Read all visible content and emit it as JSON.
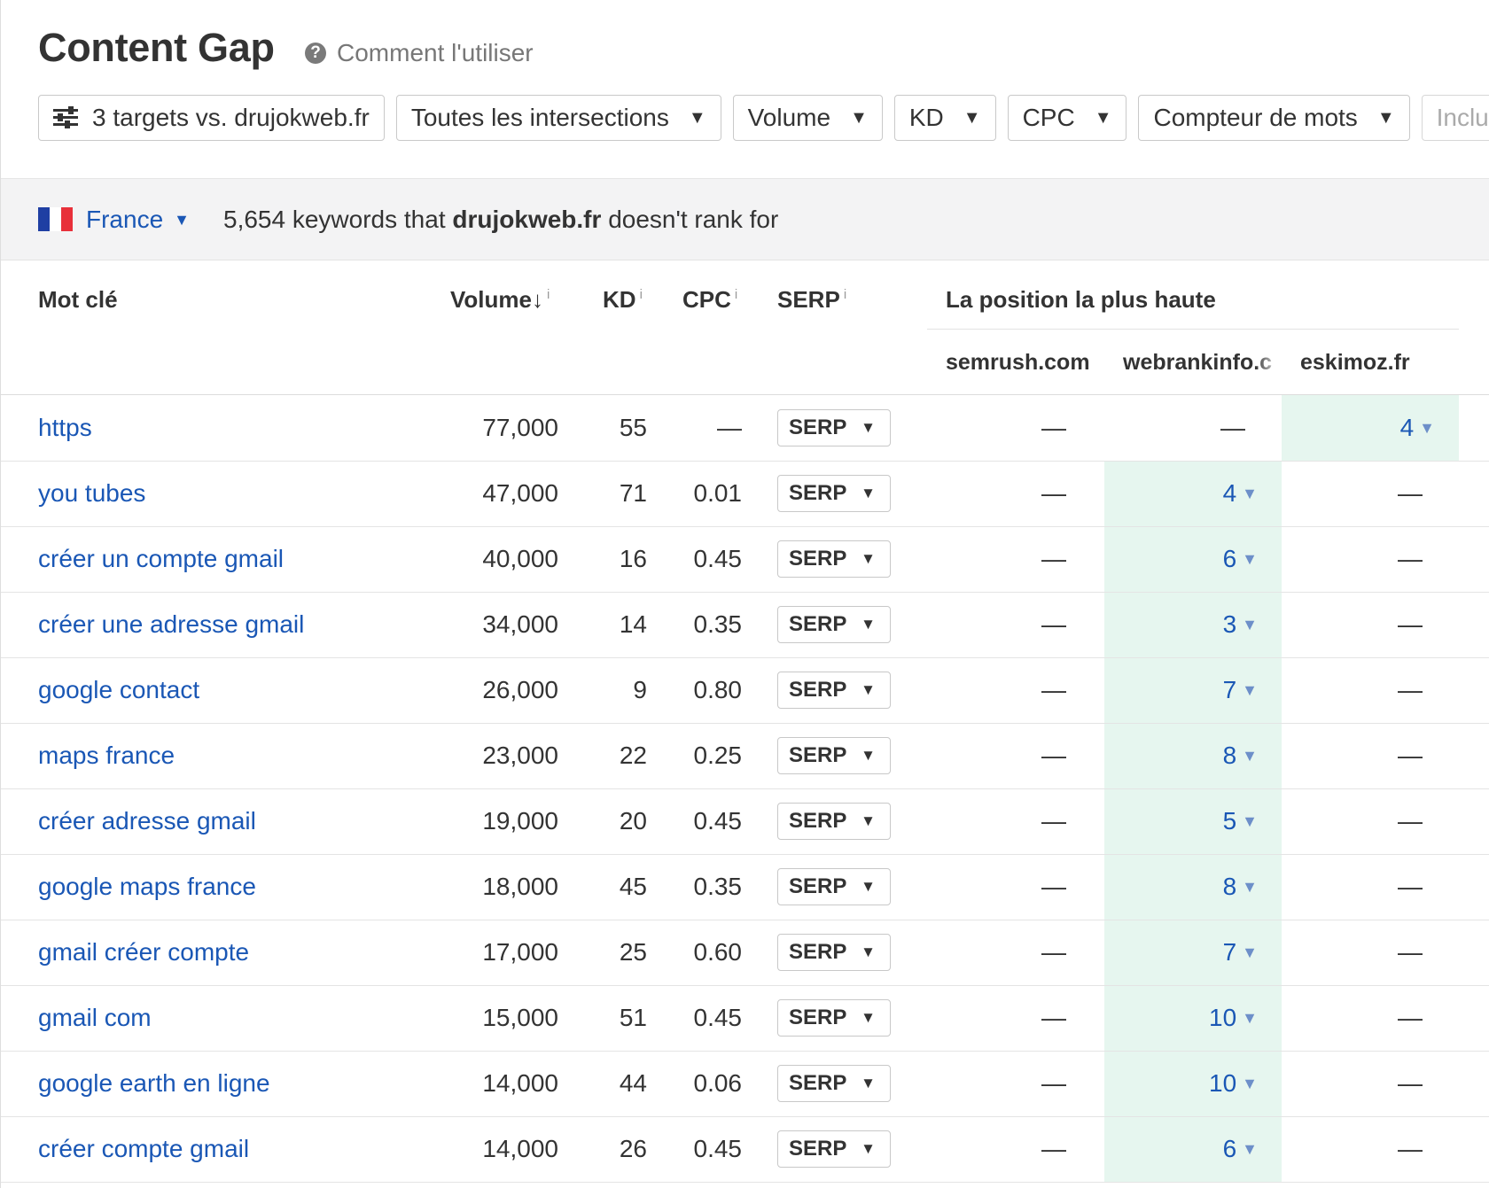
{
  "header": {
    "title": "Content Gap",
    "help_label": "Comment l'utiliser"
  },
  "filters": {
    "targets_label": "3 targets vs. drujokweb.fr",
    "intersections_label": "Toutes les intersections",
    "volume_label": "Volume",
    "kd_label": "KD",
    "cpc_label": "CPC",
    "word_count_label": "Compteur de mots",
    "include_label": "Inclure"
  },
  "country_bar": {
    "country": "France",
    "flag_colors": [
      "#1f3fa3",
      "#ffffff",
      "#e8303a"
    ],
    "summary_count": "5,654",
    "summary_pre": "keywords that",
    "summary_domain": "drujokweb.fr",
    "summary_post": "doesn't rank for"
  },
  "table": {
    "col_keyword": "Mot clé",
    "col_volume": "Volume",
    "col_kd": "KD",
    "col_cpc": "CPC",
    "col_serp": "SERP",
    "info_mark": "i",
    "sort_arrow": "↓",
    "col_group": "La position la plus haute",
    "competitors": [
      "semrush.com",
      "webrankinfo.c",
      "eskimoz.fr"
    ],
    "serp_button_label": "SERP",
    "highlight_color": "#e6f6ef",
    "rows": [
      {
        "keyword": "https",
        "volume": "77,000",
        "kd": "55",
        "cpc": "—",
        "pos1": "—",
        "pos2": "—",
        "pos3": "4"
      },
      {
        "keyword": "you tubes",
        "volume": "47,000",
        "kd": "71",
        "cpc": "0.01",
        "pos1": "—",
        "pos2": "4",
        "pos3": "—"
      },
      {
        "keyword": "créer un compte gmail",
        "volume": "40,000",
        "kd": "16",
        "cpc": "0.45",
        "pos1": "—",
        "pos2": "6",
        "pos3": "—"
      },
      {
        "keyword": "créer une adresse gmail",
        "volume": "34,000",
        "kd": "14",
        "cpc": "0.35",
        "pos1": "—",
        "pos2": "3",
        "pos3": "—"
      },
      {
        "keyword": "google contact",
        "volume": "26,000",
        "kd": "9",
        "cpc": "0.80",
        "pos1": "—",
        "pos2": "7",
        "pos3": "—"
      },
      {
        "keyword": "maps france",
        "volume": "23,000",
        "kd": "22",
        "cpc": "0.25",
        "pos1": "—",
        "pos2": "8",
        "pos3": "—"
      },
      {
        "keyword": "créer adresse gmail",
        "volume": "19,000",
        "kd": "20",
        "cpc": "0.45",
        "pos1": "—",
        "pos2": "5",
        "pos3": "—"
      },
      {
        "keyword": "google maps france",
        "volume": "18,000",
        "kd": "45",
        "cpc": "0.35",
        "pos1": "—",
        "pos2": "8",
        "pos3": "—"
      },
      {
        "keyword": "gmail créer compte",
        "volume": "17,000",
        "kd": "25",
        "cpc": "0.60",
        "pos1": "—",
        "pos2": "7",
        "pos3": "—"
      },
      {
        "keyword": "gmail com",
        "volume": "15,000",
        "kd": "51",
        "cpc": "0.45",
        "pos1": "—",
        "pos2": "10",
        "pos3": "—"
      },
      {
        "keyword": "google earth en ligne",
        "volume": "14,000",
        "kd": "44",
        "cpc": "0.06",
        "pos1": "—",
        "pos2": "10",
        "pos3": "—"
      },
      {
        "keyword": "créer compte gmail",
        "volume": "14,000",
        "kd": "26",
        "cpc": "0.45",
        "pos1": "—",
        "pos2": "6",
        "pos3": "—"
      }
    ]
  }
}
